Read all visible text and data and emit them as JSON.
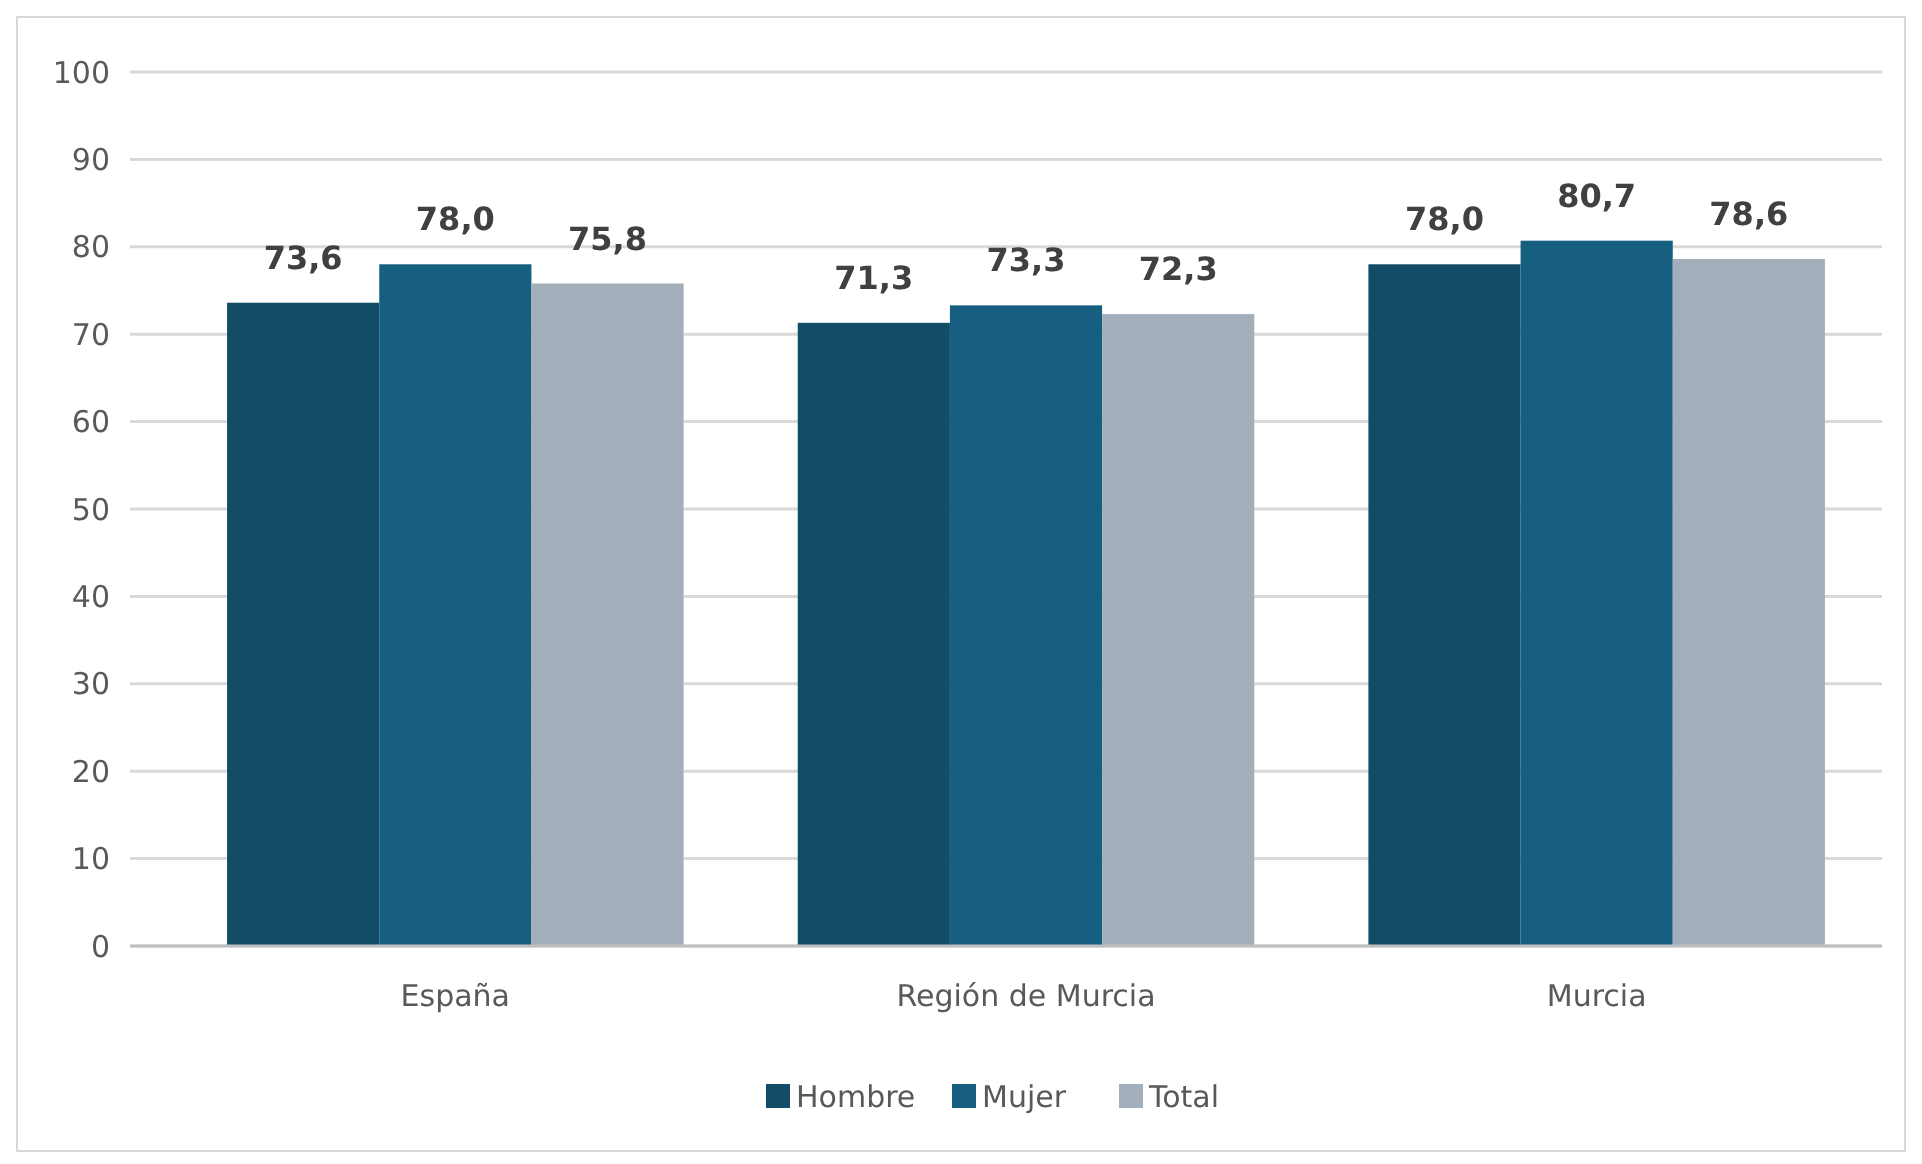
{
  "chart_data": {
    "type": "bar",
    "categories": [
      "España",
      "Región de Murcia",
      "Murcia"
    ],
    "series": [
      {
        "name": "Hombre",
        "color": "#124c66",
        "values": [
          73.6,
          71.3,
          78.0
        ],
        "value_labels": [
          "73,6",
          "71,3",
          "78,0"
        ]
      },
      {
        "name": "Mujer",
        "color": "#165f80",
        "values": [
          78.0,
          73.3,
          80.7
        ],
        "value_labels": [
          "78,0",
          "73,3",
          "80,7"
        ]
      },
      {
        "name": "Total",
        "color": "#a2afba",
        "values": [
          75.8,
          72.3,
          78.6
        ],
        "value_labels": [
          "75,8",
          "72,3",
          "78,6"
        ]
      }
    ],
    "ylim": [
      0,
      100
    ],
    "yticks": [
      0,
      10,
      20,
      30,
      40,
      50,
      60,
      70,
      80,
      90,
      100
    ],
    "grid": "y",
    "legend": "bottom"
  }
}
